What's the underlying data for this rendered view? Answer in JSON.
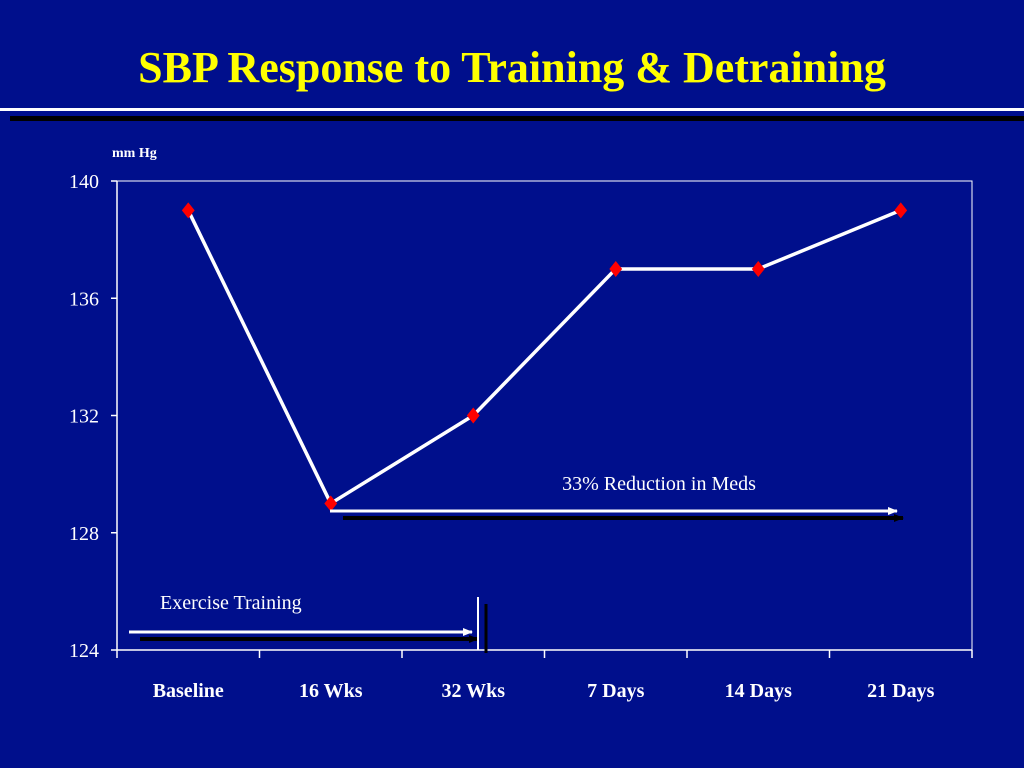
{
  "title": "SBP Response to Training & Detraining",
  "chart_data": {
    "type": "line",
    "ylabel": "mm Hg",
    "xlabel": "",
    "categories": [
      "Baseline",
      "16 Wks",
      "32 Wks",
      "7 Days",
      "14 Days",
      "21 Days"
    ],
    "series": [
      {
        "values": [
          139,
          129,
          132,
          137,
          137,
          139
        ]
      }
    ],
    "ylim": [
      124,
      140
    ],
    "yticks": [
      "140",
      "136",
      "132",
      "128",
      "124"
    ],
    "grid": false,
    "annotations": {
      "meds": "33% Reduction in Meds",
      "exercise": "Exercise Training"
    },
    "colors": {
      "background": "#000f8c",
      "title": "#ffff00",
      "line": "#ffffff",
      "marker": "#ff0000",
      "axis": "#ffffff"
    }
  }
}
